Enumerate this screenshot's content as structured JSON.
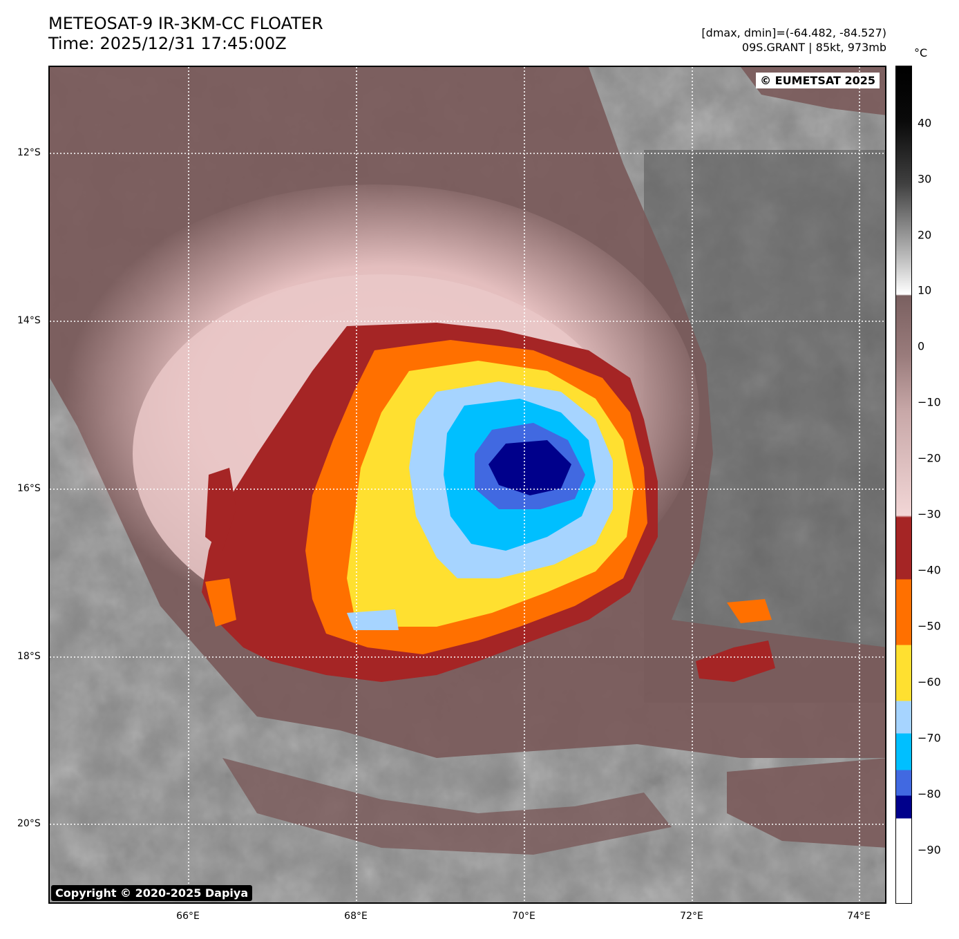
{
  "title": {
    "line1": "METEOSAT-9 IR-3KM-CC FLOATER",
    "line2": "Time: 2025/12/31 17:45:00Z"
  },
  "meta": {
    "range": "[dmax, dmin]=(-64.482, -84.527)",
    "storm": "09S.GRANT | 85kt, 973mb"
  },
  "watermarks": {
    "top_right": "© EUMETSAT 2025",
    "bottom_left": "Copyright © 2020-2025 Dapiya"
  },
  "axes": {
    "lon_ticks": [
      "66°E",
      "68°E",
      "70°E",
      "72°E",
      "74°E"
    ],
    "lat_ticks": [
      "12°S",
      "14°S",
      "16°S",
      "18°S",
      "20°S"
    ]
  },
  "colorbar": {
    "unit": "°C",
    "labels": [
      "40",
      "30",
      "20",
      "10",
      "0",
      "−10",
      "−20",
      "−30",
      "−40",
      "−50",
      "−60",
      "−70",
      "−80",
      "−90"
    ],
    "range": [
      -100,
      50
    ],
    "colors": {
      "warm_black": "#000000",
      "gray": "#808080",
      "white": "#ffffff",
      "brown": "#7a5a5a",
      "pink": "#f2d6d6",
      "dark_red": "#a52525",
      "orange": "#ff7000",
      "yellow": "#ffe030",
      "light_blue": "#a6d4ff",
      "cyan": "#00bfff",
      "royal_blue": "#4169e1",
      "navy": "#00008b"
    }
  }
}
